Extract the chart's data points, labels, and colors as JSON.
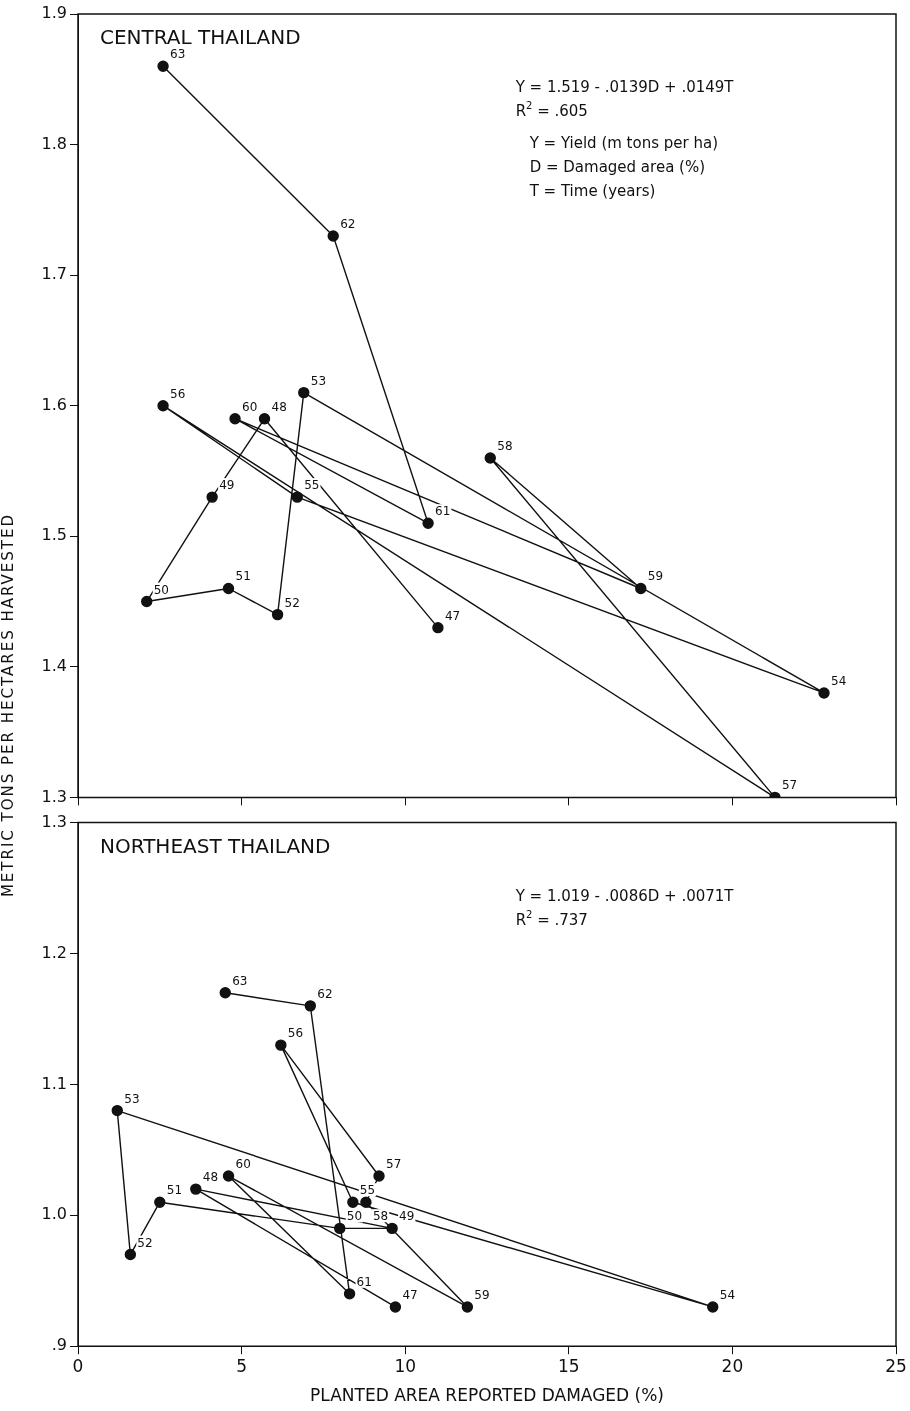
{
  "chart_data": [
    {
      "type": "line",
      "title": "CENTRAL THAILAND",
      "ylabel": "METRIC TONS PER HECTARES HARVESTED",
      "annotations": [
        "Y = 1.519 - .0139D + .0149T",
        "R$^{2}$ = .605",
        "Y = Yield (m tons per ha)",
        "D = Damaged area (%)",
        "T = Time (years)",
        {
          "text": "47",
          "x": 11.0,
          "y": 1.43
        },
        {
          "text": "48",
          "x": 5.7,
          "y": 1.59
        },
        {
          "text": "49",
          "x": 4.1,
          "y": 1.53
        },
        {
          "text": "50",
          "x": 2.1,
          "y": 1.45
        },
        {
          "text": "51",
          "x": 4.6,
          "y": 1.46
        },
        {
          "text": "52",
          "x": 6.1,
          "y": 1.44
        },
        {
          "text": "53",
          "x": 6.9,
          "y": 1.61
        },
        {
          "text": "54",
          "x": 22.8,
          "y": 1.38
        },
        {
          "text": "55",
          "x": 6.7,
          "y": 1.53
        },
        {
          "text": "56",
          "x": 2.6,
          "y": 1.6
        },
        {
          "text": "57",
          "x": 21.3,
          "y": 1.3
        },
        {
          "text": "58",
          "x": 12.6,
          "y": 1.56
        },
        {
          "text": "59",
          "x": 17.2,
          "y": 1.46
        },
        {
          "text": "60",
          "x": 4.8,
          "y": 1.59
        },
        {
          "text": "61",
          "x": 10.7,
          "y": 1.51
        },
        {
          "text": "62",
          "x": 7.8,
          "y": 1.73
        },
        {
          "text": "63",
          "x": 2.6,
          "y": 1.86
        }
      ],
      "series": [
        {
          "color": "#111111",
          "x": [
            11.0,
            5.7,
            4.1,
            2.1,
            4.6,
            6.1,
            6.9,
            22.8,
            6.7,
            2.6,
            21.3,
            12.6,
            17.2,
            4.8,
            10.7,
            7.8,
            2.6
          ],
          "values": [
            1.43,
            1.59,
            1.53,
            1.45,
            1.46,
            1.44,
            1.61,
            1.38,
            1.53,
            1.6,
            1.3,
            1.56,
            1.46,
            1.59,
            1.51,
            1.73,
            1.86
          ]
        }
      ],
      "xlim": [
        0,
        25
      ],
      "xticks": [
        0,
        5,
        10,
        15,
        20,
        25
      ],
      "ylim": [
        1.3,
        1.9
      ],
      "yticks": [
        1.3,
        1.4,
        1.5,
        1.6,
        1.7,
        1.8,
        1.9
      ],
      "tick_labels": "y",
      "marker": "circle",
      "line_style": "solid",
      "legend": false
    },
    {
      "type": "line",
      "title": "NORTHEAST THAILAND",
      "xlabel": "PLANTED AREA REPORTED DAMAGED (%)",
      "annotations": [
        "Y = 1.019 - .0086D + .0071T",
        "R$^{2}$ = .737",
        {
          "text": "47",
          "x": 9.7,
          "y": 0.93
        },
        {
          "text": "48",
          "x": 3.6,
          "y": 1.02
        },
        {
          "text": "49",
          "x": 9.6,
          "y": 0.99
        },
        {
          "text": "50",
          "x": 8.0,
          "y": 0.99
        },
        {
          "text": "51",
          "x": 2.5,
          "y": 1.01
        },
        {
          "text": "52",
          "x": 1.6,
          "y": 0.97
        },
        {
          "text": "53",
          "x": 1.2,
          "y": 1.08
        },
        {
          "text": "54",
          "x": 19.4,
          "y": 0.93
        },
        {
          "text": "55",
          "x": 8.4,
          "y": 1.01
        },
        {
          "text": "56",
          "x": 6.2,
          "y": 1.13
        },
        {
          "text": "57",
          "x": 9.2,
          "y": 1.03
        },
        {
          "text": "58",
          "x": 8.8,
          "y": 1.01
        },
        {
          "text": "59",
          "x": 11.9,
          "y": 0.93
        },
        {
          "text": "60",
          "x": 4.6,
          "y": 1.03
        },
        {
          "text": "61",
          "x": 8.3,
          "y": 0.94
        },
        {
          "text": "62",
          "x": 7.1,
          "y": 1.16
        },
        {
          "text": "63",
          "x": 4.5,
          "y": 1.17
        }
      ],
      "series": [
        {
          "color": "#111111",
          "x": [
            9.7,
            3.6,
            9.6,
            8.0,
            2.5,
            1.6,
            1.2,
            19.4,
            8.4,
            6.2,
            9.2,
            8.8,
            11.9,
            4.6,
            8.3,
            7.1,
            4.5
          ],
          "values": [
            0.93,
            1.02,
            0.99,
            0.99,
            1.01,
            0.97,
            1.08,
            0.93,
            1.01,
            1.13,
            1.03,
            1.01,
            0.93,
            1.03,
            0.94,
            1.16,
            1.17
          ]
        }
      ],
      "xlim": [
        0,
        25
      ],
      "xticks": [
        0,
        5,
        10,
        15,
        20,
        25
      ],
      "ylim": [
        0.9,
        1.3
      ],
      "yticks": [
        {
          "value": 0.9,
          "label": ".9"
        },
        {
          "value": 1.0,
          "label": "1.0"
        },
        1.1,
        1.2,
        1.3
      ],
      "marker": "circle",
      "line_style": "solid",
      "legend": false
    }
  ]
}
